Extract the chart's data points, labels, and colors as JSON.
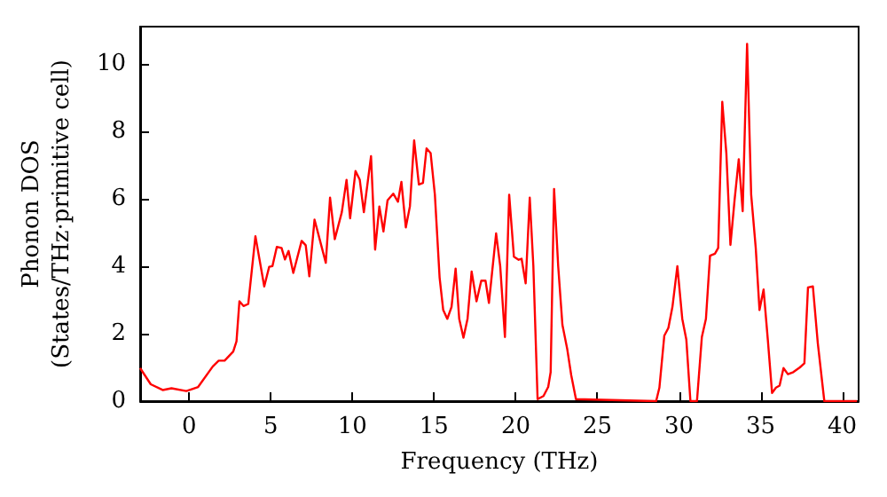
{
  "chart_data": {
    "type": "line",
    "xlabel": "Frequency (THz)",
    "ylabel": "Phonon DOS\n(States/THz·primitive cell)",
    "xlim": [
      -3,
      41
    ],
    "xticks": [
      0,
      5,
      10,
      15,
      20,
      25,
      30,
      35,
      40
    ],
    "ylim": [
      0,
      11.1
    ],
    "yticks": [
      0,
      2,
      4,
      6,
      8,
      10
    ],
    "grid": false,
    "marker": "none",
    "line_style": "solid",
    "series": [
      {
        "color": "#ff0000",
        "x": [
          -3.0,
          -2.35,
          -1.62,
          -1.08,
          -0.17,
          0.55,
          1.45,
          1.81,
          2.17,
          2.7,
          2.9,
          3.08,
          3.33,
          3.62,
          4.06,
          4.6,
          4.9,
          5.1,
          5.37,
          5.66,
          5.87,
          6.09,
          6.38,
          6.89,
          7.14,
          7.36,
          7.68,
          8.37,
          8.63,
          8.92,
          9.35,
          9.64,
          9.86,
          10.19,
          10.45,
          10.7,
          11.14,
          11.39,
          11.65,
          11.9,
          12.15,
          12.5,
          12.79,
          13.0,
          13.27,
          13.52,
          13.78,
          14.07,
          14.32,
          14.54,
          14.79,
          15.05,
          15.34,
          15.56,
          15.81,
          16.07,
          16.32,
          16.54,
          16.8,
          17.05,
          17.3,
          17.6,
          17.89,
          18.15,
          18.36,
          18.8,
          19.05,
          19.34,
          19.6,
          19.89,
          20.18,
          20.36,
          20.61,
          20.86,
          21.08,
          21.34,
          21.7,
          21.99,
          22.14,
          22.35,
          22.6,
          22.86,
          23.15,
          23.4,
          23.69,
          28.6,
          28.8,
          29.1,
          29.35,
          29.6,
          29.9,
          30.2,
          30.45,
          30.7,
          31.1,
          31.4,
          31.65,
          31.9,
          32.2,
          32.4,
          32.65,
          32.9,
          33.15,
          33.4,
          33.66,
          33.9,
          34.17,
          34.42,
          34.7,
          34.93,
          35.18,
          35.44,
          35.7,
          35.94,
          36.16,
          36.4,
          36.67,
          37.0,
          37.4,
          37.68,
          37.9,
          38.2,
          38.5,
          38.9,
          40.9
        ],
        "values": [
          0.98,
          0.5,
          0.33,
          0.38,
          0.3,
          0.42,
          1.03,
          1.2,
          1.2,
          1.47,
          1.77,
          2.96,
          2.82,
          2.88,
          4.89,
          3.4,
          3.98,
          4.0,
          4.57,
          4.54,
          4.2,
          4.45,
          3.8,
          4.75,
          4.62,
          3.7,
          5.38,
          4.1,
          6.03,
          4.8,
          5.6,
          6.56,
          5.42,
          6.82,
          6.56,
          5.6,
          7.26,
          4.49,
          5.77,
          5.03,
          5.95,
          6.15,
          5.91,
          6.5,
          5.15,
          5.77,
          7.73,
          6.42,
          6.47,
          7.49,
          7.35,
          6.12,
          3.66,
          2.7,
          2.44,
          2.79,
          3.93,
          2.44,
          1.88,
          2.44,
          3.84,
          2.96,
          3.57,
          3.57,
          2.91,
          4.97,
          4.01,
          1.9,
          6.12,
          4.28,
          4.19,
          4.22,
          3.49,
          6.03,
          4.01,
          0.06,
          0.15,
          0.42,
          0.86,
          6.29,
          4.01,
          2.26,
          1.56,
          0.77,
          0.06,
          0,
          0.4,
          1.94,
          2.17,
          2.8,
          4.0,
          2.44,
          1.82,
          0,
          0,
          1.9,
          2.44,
          4.31,
          4.37,
          4.54,
          8.87,
          7.35,
          4.63,
          5.94,
          7.17,
          5.63,
          10.59,
          6.12,
          4.54,
          2.7,
          3.31,
          1.82,
          0.24,
          0.4,
          0.46,
          0.98,
          0.8,
          0.86,
          1.0,
          1.12,
          3.37,
          3.4,
          1.72,
          0,
          0
        ]
      }
    ]
  }
}
